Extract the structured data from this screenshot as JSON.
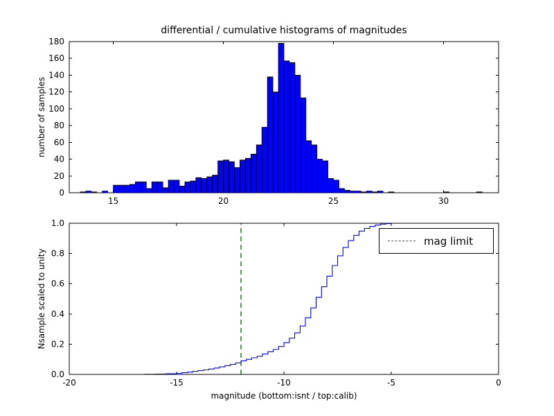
{
  "figure": {
    "title": "differential / cumulative histograms of magnitudes",
    "xlabel": "magnitude (bottom:isnt / top:calib)",
    "background": "#ffffff"
  },
  "legend": {
    "label": "mag limit",
    "line_color": "#008000",
    "line_style": "dashed",
    "position": "upper right"
  },
  "chart_data": [
    {
      "type": "bar",
      "name": "differential-histogram",
      "title": "differential / cumulative histograms of magnitudes",
      "ylabel": "number of samples",
      "xlim": [
        13,
        32.5
      ],
      "ylim": [
        0,
        180
      ],
      "xticks": [
        15,
        20,
        25,
        30
      ],
      "xticklabels": [
        "15",
        "20",
        "25",
        "30"
      ],
      "yticks": [
        0,
        20,
        40,
        60,
        80,
        100,
        120,
        140,
        160,
        180
      ],
      "yticklabels": [
        "0",
        "20",
        "40",
        "60",
        "80",
        "100",
        "120",
        "140",
        "160",
        "180"
      ],
      "grid": false,
      "bin_width": 0.25,
      "bar_color": "#0000ff",
      "bar_edge_color": "#000000",
      "bins": [
        [
          13.5,
          1
        ],
        [
          13.75,
          2
        ],
        [
          14.0,
          1
        ],
        [
          14.25,
          0
        ],
        [
          14.5,
          2
        ],
        [
          14.75,
          0
        ],
        [
          15.0,
          9
        ],
        [
          15.25,
          9
        ],
        [
          15.5,
          9
        ],
        [
          15.75,
          10
        ],
        [
          16.0,
          13
        ],
        [
          16.25,
          13
        ],
        [
          16.5,
          5
        ],
        [
          16.75,
          13
        ],
        [
          17.0,
          13
        ],
        [
          17.25,
          6
        ],
        [
          17.5,
          15
        ],
        [
          17.75,
          15
        ],
        [
          18.0,
          8
        ],
        [
          18.25,
          13
        ],
        [
          18.5,
          14
        ],
        [
          18.75,
          18
        ],
        [
          19.0,
          17
        ],
        [
          19.25,
          19
        ],
        [
          19.5,
          21
        ],
        [
          19.75,
          38
        ],
        [
          20.0,
          39
        ],
        [
          20.25,
          37
        ],
        [
          20.5,
          30
        ],
        [
          20.75,
          39
        ],
        [
          21.0,
          41
        ],
        [
          21.25,
          46
        ],
        [
          21.5,
          57
        ],
        [
          21.75,
          78
        ],
        [
          22.0,
          138
        ],
        [
          22.25,
          120
        ],
        [
          22.5,
          178
        ],
        [
          22.75,
          157
        ],
        [
          23.0,
          155
        ],
        [
          23.25,
          140
        ],
        [
          23.5,
          113
        ],
        [
          23.75,
          62
        ],
        [
          24.0,
          57
        ],
        [
          24.25,
          40
        ],
        [
          24.5,
          38
        ],
        [
          24.75,
          17
        ],
        [
          25.0,
          15
        ],
        [
          25.25,
          5
        ],
        [
          25.5,
          3
        ],
        [
          25.75,
          2
        ],
        [
          26.0,
          2
        ],
        [
          26.25,
          1
        ],
        [
          26.5,
          2
        ],
        [
          26.75,
          1
        ],
        [
          27.0,
          2
        ],
        [
          27.25,
          0
        ],
        [
          27.5,
          1
        ],
        [
          30.0,
          1
        ],
        [
          31.5,
          1
        ]
      ]
    },
    {
      "type": "line",
      "name": "cumulative-histogram",
      "ylabel": "Nsample scaled to unity",
      "xlabel": "magnitude (bottom:isnt / top:calib)",
      "xlim": [
        -20,
        0
      ],
      "ylim": [
        0,
        1
      ],
      "xticks": [
        -20,
        -15,
        -10,
        -5,
        0
      ],
      "xticklabels": [
        "-20",
        "-15",
        "-10",
        "-5",
        "0"
      ],
      "yticks": [
        0,
        0.2,
        0.4,
        0.6,
        0.8,
        1
      ],
      "yticklabels": [
        "0.0",
        "0.2",
        "0.4",
        "0.6",
        "0.8",
        "1.0"
      ],
      "grid": false,
      "line_color": "#0000ff",
      "step": true,
      "points": [
        [
          -16.5,
          0.001
        ],
        [
          -16.0,
          0.002
        ],
        [
          -15.5,
          0.004
        ],
        [
          -15.0,
          0.007
        ],
        [
          -14.75,
          0.011
        ],
        [
          -14.5,
          0.015
        ],
        [
          -14.25,
          0.02
        ],
        [
          -14.0,
          0.025
        ],
        [
          -13.75,
          0.03
        ],
        [
          -13.5,
          0.036
        ],
        [
          -13.25,
          0.042
        ],
        [
          -13.0,
          0.05
        ],
        [
          -12.75,
          0.058
        ],
        [
          -12.5,
          0.066
        ],
        [
          -12.25,
          0.076
        ],
        [
          -12.0,
          0.09
        ],
        [
          -11.75,
          0.1
        ],
        [
          -11.5,
          0.11
        ],
        [
          -11.25,
          0.12
        ],
        [
          -11.0,
          0.135
        ],
        [
          -10.75,
          0.15
        ],
        [
          -10.5,
          0.165
        ],
        [
          -10.25,
          0.185
        ],
        [
          -10.0,
          0.21
        ],
        [
          -9.75,
          0.24
        ],
        [
          -9.5,
          0.275
        ],
        [
          -9.25,
          0.32
        ],
        [
          -9.0,
          0.375
        ],
        [
          -8.75,
          0.44
        ],
        [
          -8.5,
          0.51
        ],
        [
          -8.25,
          0.58
        ],
        [
          -8.0,
          0.65
        ],
        [
          -7.75,
          0.72
        ],
        [
          -7.5,
          0.785
        ],
        [
          -7.25,
          0.84
        ],
        [
          -7.0,
          0.885
        ],
        [
          -6.75,
          0.92
        ],
        [
          -6.5,
          0.948
        ],
        [
          -6.25,
          0.966
        ],
        [
          -6.0,
          0.979
        ],
        [
          -5.75,
          0.988
        ],
        [
          -5.5,
          0.994
        ],
        [
          -5.25,
          0.998
        ],
        [
          -5.0,
          1.0
        ],
        [
          0,
          1.0
        ]
      ],
      "vline": {
        "x": -12,
        "color": "#008000",
        "style": "dashed",
        "label": "mag limit"
      }
    }
  ]
}
